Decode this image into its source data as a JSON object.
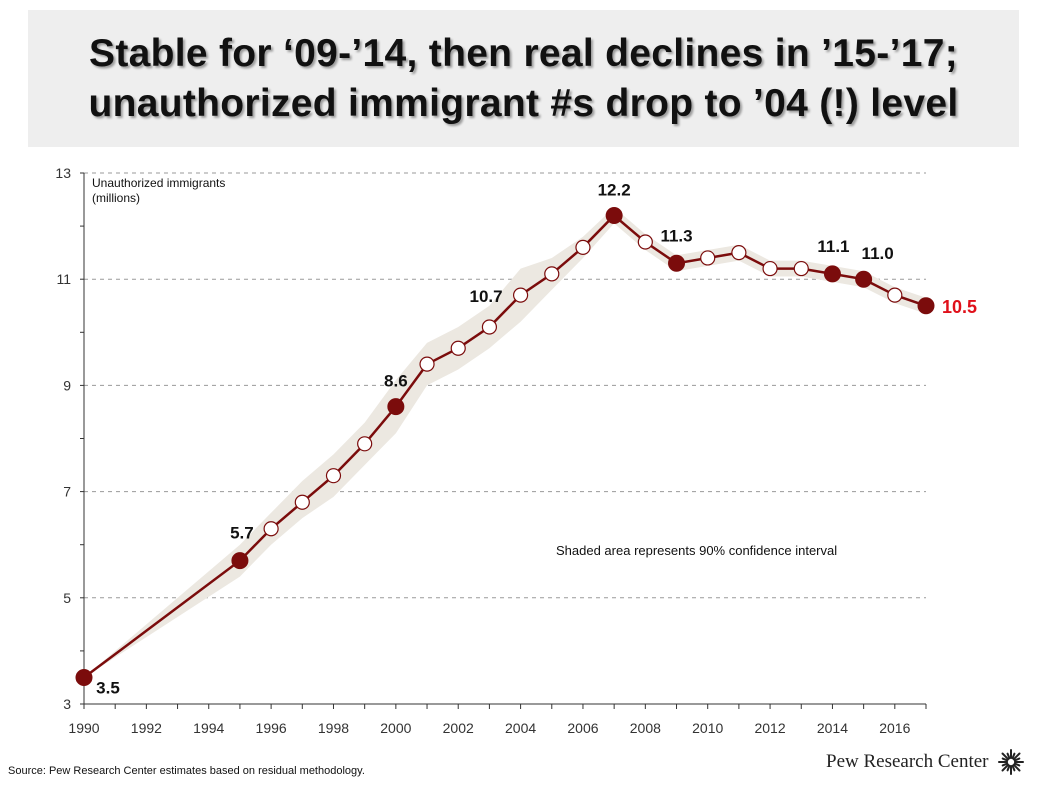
{
  "title": {
    "line1": "Stable for ‘09-’14, then real declines in ’15-’17;",
    "line2": "unauthorized immigrant #s drop to ’04 (!) level"
  },
  "chart_data": {
    "type": "line",
    "ylabel_line1": "Unauthorized immigrants",
    "ylabel_line2": "(millions)",
    "xlim": [
      1990,
      2017
    ],
    "ylim": [
      3,
      13
    ],
    "yticks": [
      3,
      5,
      7,
      9,
      11,
      13
    ],
    "xticks": [
      1990,
      1992,
      1994,
      1996,
      1998,
      2000,
      2002,
      2004,
      2006,
      2008,
      2010,
      2012,
      2014,
      2016
    ],
    "grid": "horizontal-dashed",
    "series": [
      {
        "name": "Unauthorized immigrants",
        "color": "#7b0c0c",
        "points": [
          {
            "x": 1990,
            "y": 3.5,
            "highlight": true,
            "label": "3.5"
          },
          {
            "x": 1995,
            "y": 5.7,
            "highlight": true,
            "label": "5.7"
          },
          {
            "x": 1996,
            "y": 6.3
          },
          {
            "x": 1997,
            "y": 6.8
          },
          {
            "x": 1998,
            "y": 7.3
          },
          {
            "x": 1999,
            "y": 7.9
          },
          {
            "x": 2000,
            "y": 8.6,
            "highlight": true,
            "label": "8.6"
          },
          {
            "x": 2001,
            "y": 9.4
          },
          {
            "x": 2002,
            "y": 9.7
          },
          {
            "x": 2003,
            "y": 10.1
          },
          {
            "x": 2004,
            "y": 10.7,
            "label": "10.7"
          },
          {
            "x": 2005,
            "y": 11.1
          },
          {
            "x": 2006,
            "y": 11.6
          },
          {
            "x": 2007,
            "y": 12.2,
            "highlight": true,
            "label": "12.2"
          },
          {
            "x": 2008,
            "y": 11.7
          },
          {
            "x": 2009,
            "y": 11.3,
            "highlight": true,
            "label": "11.3"
          },
          {
            "x": 2010,
            "y": 11.4
          },
          {
            "x": 2011,
            "y": 11.5
          },
          {
            "x": 2012,
            "y": 11.2
          },
          {
            "x": 2013,
            "y": 11.2
          },
          {
            "x": 2014,
            "y": 11.1,
            "highlight": true,
            "label": "11.1"
          },
          {
            "x": 2015,
            "y": 11.0,
            "highlight": true,
            "label": "11.0"
          },
          {
            "x": 2016,
            "y": 10.7
          },
          {
            "x": 2017,
            "y": 10.5,
            "highlight": true,
            "label": "10.5",
            "emphasis": true
          }
        ],
        "ci_upper": [
          3.5,
          6.0,
          6.6,
          7.2,
          7.7,
          8.3,
          9.1,
          9.8,
          10.1,
          10.5,
          11.2,
          11.4,
          11.8,
          12.35,
          11.85,
          11.45,
          11.55,
          11.65,
          11.35,
          11.35,
          11.25,
          11.15,
          10.85,
          10.65
        ],
        "ci_lower": [
          3.5,
          5.4,
          6.0,
          6.5,
          6.9,
          7.5,
          8.1,
          9.0,
          9.3,
          9.7,
          10.2,
          10.8,
          11.4,
          12.05,
          11.55,
          11.15,
          11.25,
          11.35,
          11.05,
          11.05,
          10.95,
          10.85,
          10.55,
          10.35
        ]
      }
    ],
    "annotation": "Shaded area represents 90% confidence interval",
    "colors": {
      "line": "#7b0c0c",
      "band": "#ece8e1",
      "emphasis_label": "#e0101a",
      "grid": "#9a9a9a"
    }
  },
  "source": "Source: Pew Research Center estimates based on residual methodology.",
  "brand": {
    "name": "Pew Research Center",
    "icon": "pew-starburst-logo-icon"
  }
}
